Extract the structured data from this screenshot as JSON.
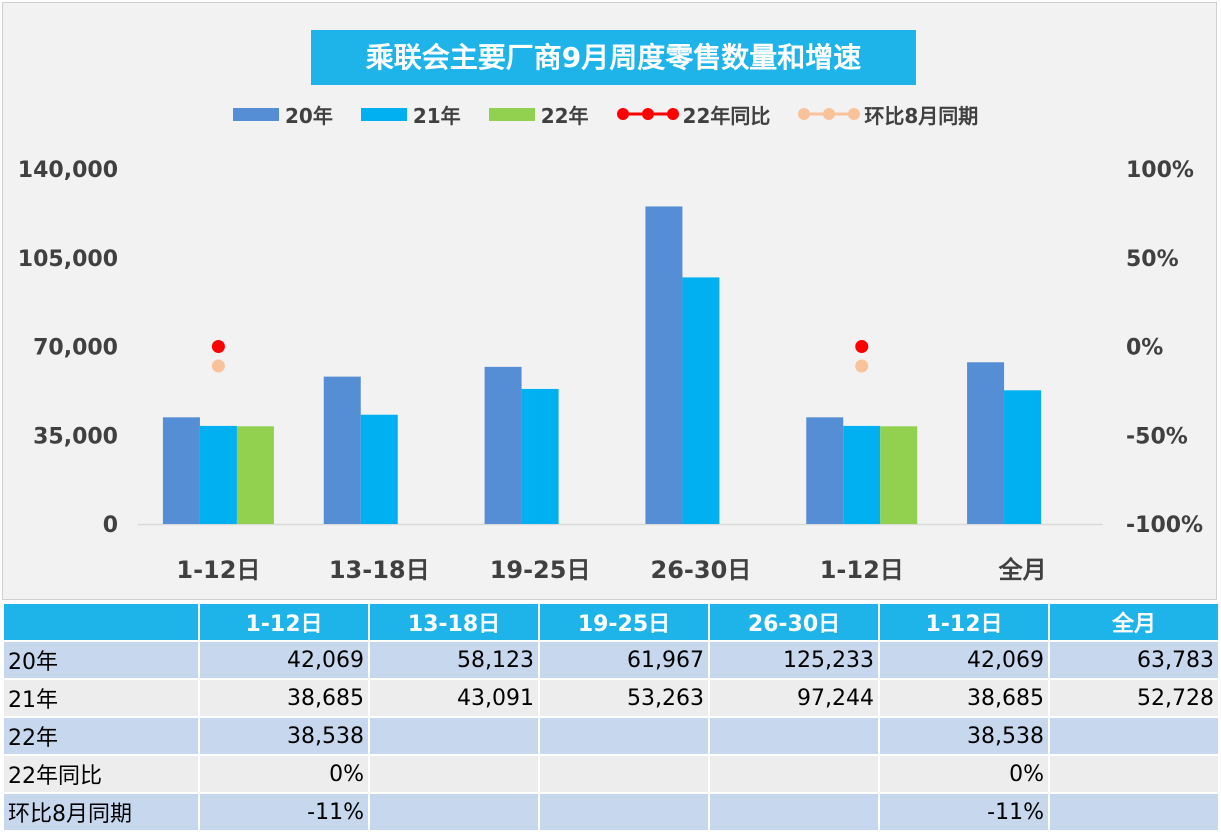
{
  "chart_data": {
    "type": "bar",
    "title": "乘联会主要厂商9月周度零售数量和增速",
    "categories": [
      "1-12日",
      "13-18日",
      "19-25日",
      "26-30日",
      "1-12日",
      "全月"
    ],
    "series": [
      {
        "name": "20年",
        "values": [
          42069,
          58123,
          61967,
          125233,
          42069,
          63783
        ],
        "color": "#558ed5"
      },
      {
        "name": "21年",
        "values": [
          38685,
          43091,
          53263,
          97244,
          38685,
          52728
        ],
        "color": "#00b0f0"
      },
      {
        "name": "22年",
        "values": [
          38538,
          null,
          null,
          null,
          38538,
          null
        ],
        "color": "#92d050"
      }
    ],
    "line_series": [
      {
        "name": "22年同比",
        "values": [
          0,
          null,
          null,
          null,
          0,
          null
        ],
        "color": "#ff0000"
      },
      {
        "name": "环比8月同期",
        "values": [
          -11,
          null,
          null,
          null,
          -11,
          null
        ],
        "color": "#f8c39b"
      }
    ],
    "ylim": [
      0,
      140000
    ],
    "yticks": [
      "140,000",
      "105,000",
      "70,000",
      "35,000",
      "0"
    ],
    "ytick_values": [
      140000,
      105000,
      70000,
      35000,
      0
    ],
    "y2lim": [
      -100,
      100
    ],
    "y2ticks": [
      "100%",
      "50%",
      "0%",
      "-50%",
      "-100%"
    ],
    "y2tick_values": [
      100,
      50,
      0,
      -50,
      -100
    ],
    "legend_position": "top",
    "grid": false
  },
  "legend": [
    {
      "label": "20年",
      "kind": "bar",
      "color": "#558ed5"
    },
    {
      "label": "21年",
      "kind": "bar",
      "color": "#00b0f0"
    },
    {
      "label": "22年",
      "kind": "bar",
      "color": "#92d050"
    },
    {
      "label": "22年同比",
      "kind": "line",
      "color": "#ff0000"
    },
    {
      "label": "环比8月同期",
      "kind": "line",
      "color": "#f8c39b"
    }
  ],
  "table": {
    "headers": [
      "",
      "1-12日",
      "13-18日",
      "19-25日",
      "26-30日",
      "1-12日",
      "全月"
    ],
    "rows": [
      {
        "label": "20年",
        "cells": [
          "42,069",
          "58,123",
          "61,967",
          "125,233",
          "42,069",
          "63,783"
        ]
      },
      {
        "label": "21年",
        "cells": [
          "38,685",
          "43,091",
          "53,263",
          "97,244",
          "38,685",
          "52,728"
        ]
      },
      {
        "label": "22年",
        "cells": [
          "38,538",
          "",
          "",
          "",
          "38,538",
          ""
        ]
      },
      {
        "label": "22年同比",
        "cells": [
          "0%",
          "",
          "",
          "",
          "0%",
          ""
        ]
      },
      {
        "label": "环比8月同期",
        "cells": [
          "-11%",
          "",
          "",
          "",
          "-11%",
          ""
        ]
      }
    ]
  }
}
